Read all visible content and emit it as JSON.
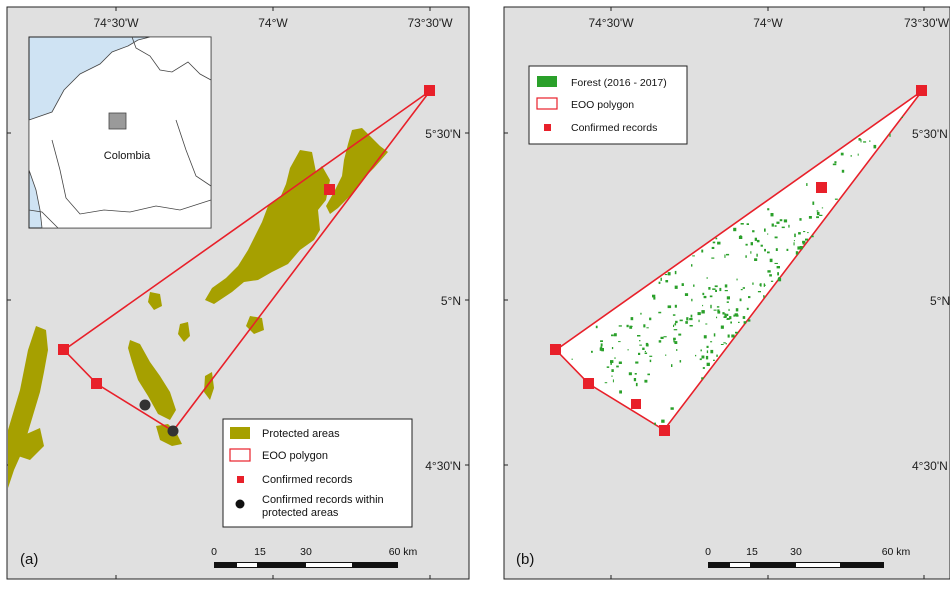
{
  "colors": {
    "map_bg": "#e0e0e0",
    "protected": "#a6a000",
    "forest": "#2aa02a",
    "eoo": "#e8202a",
    "record": "#e8202a",
    "record_in_pa": "#333333",
    "inset_sea": "#cfe3f3",
    "inset_land": "#ffffff",
    "inset_square": "#9a9a9a"
  },
  "panel_a": {
    "label": "(a)",
    "top_ticks": [
      "74°30'W",
      "74°W",
      "73°30'W"
    ],
    "right_ticks": [
      "5°30'N",
      "5°N",
      "4°30'N"
    ],
    "inset": {
      "country_label": "Colombia"
    },
    "legend": {
      "protected": "Protected areas",
      "eoo": "EOO polygon",
      "records": "Confirmed records",
      "records_pa_line1": "Confirmed records within",
      "records_pa_line2": "protected areas"
    },
    "scalebar": [
      "0",
      "15",
      "30",
      "60 km"
    ]
  },
  "panel_b": {
    "label": "(b)",
    "top_ticks": [
      "74°30'W",
      "74°W",
      "73°30'W"
    ],
    "right_ticks": [
      "5°30'N",
      "5°N",
      "4°30'N"
    ],
    "legend": {
      "forest": "Forest (2016 - 2017)",
      "eoo": "EOO polygon",
      "records": "Confirmed records"
    },
    "scalebar": [
      "0",
      "15",
      "30",
      "60 km"
    ]
  }
}
